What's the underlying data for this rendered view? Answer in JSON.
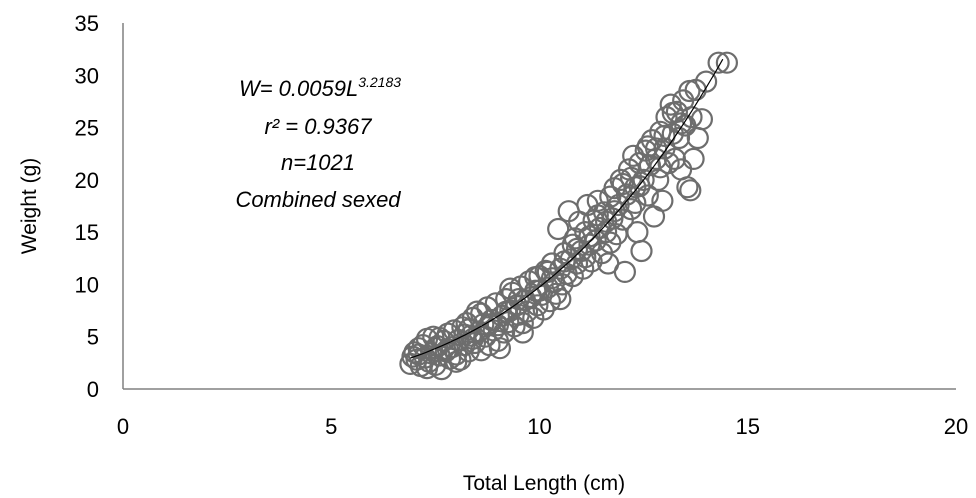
{
  "chart_data": {
    "type": "scatter",
    "title": "",
    "xlabel": "Total Length (cm)",
    "ylabel": "Weight (g)",
    "xlim": [
      0,
      20
    ],
    "ylim": [
      0,
      35
    ],
    "xticks": [
      "0",
      "5",
      "10",
      "15",
      "20"
    ],
    "yticks": [
      "0",
      "5",
      "10",
      "15",
      "20",
      "25",
      "30",
      "35"
    ],
    "grid": false,
    "legend": "none",
    "marker": "open-circle",
    "marker_color": "#6d6d6d",
    "curve_color": "#000000",
    "fit": {
      "a": 0.0059,
      "b": 3.2183,
      "x_range": [
        6.9,
        14.4
      ]
    },
    "annotation": {
      "equation_base": "W= 0.0059L",
      "equation_exponent": "3.2183",
      "r2": "r² = 0.9367",
      "n": "n=1021",
      "group": "Combined sexed"
    },
    "series": [
      {
        "points": [
          [
            6.9,
            2.4
          ],
          [
            6.95,
            3.1
          ],
          [
            7.0,
            3.5
          ],
          [
            7.05,
            2.8
          ],
          [
            7.1,
            3.9
          ],
          [
            7.15,
            2.2
          ],
          [
            7.2,
            4.2
          ],
          [
            7.25,
            3.0
          ],
          [
            7.3,
            4.8
          ],
          [
            7.35,
            2.6
          ],
          [
            7.4,
            3.4
          ],
          [
            7.45,
            5.0
          ],
          [
            7.5,
            2.3
          ],
          [
            7.55,
            4.1
          ],
          [
            7.6,
            3.2
          ],
          [
            7.65,
            1.9
          ],
          [
            7.7,
            4.6
          ],
          [
            7.75,
            3.6
          ],
          [
            7.8,
            5.3
          ],
          [
            7.85,
            2.9
          ],
          [
            7.9,
            4.0
          ],
          [
            7.95,
            5.6
          ],
          [
            8.0,
            3.3
          ],
          [
            8.05,
            4.7
          ],
          [
            8.1,
            2.8
          ],
          [
            8.15,
            5.9
          ],
          [
            8.2,
            4.2
          ],
          [
            8.25,
            6.3
          ],
          [
            8.3,
            3.6
          ],
          [
            8.35,
            5.1
          ],
          [
            8.4,
            6.8
          ],
          [
            8.45,
            4.4
          ],
          [
            8.5,
            7.4
          ],
          [
            8.55,
            5.5
          ],
          [
            8.6,
            3.7
          ],
          [
            8.65,
            6.2
          ],
          [
            8.7,
            5.0
          ],
          [
            8.75,
            7.8
          ],
          [
            8.8,
            4.2
          ],
          [
            8.85,
            6.6
          ],
          [
            8.9,
            5.6
          ],
          [
            8.95,
            8.2
          ],
          [
            9.0,
            6.1
          ],
          [
            9.05,
            3.9
          ],
          [
            9.1,
            7.0
          ],
          [
            9.15,
            5.4
          ],
          [
            9.2,
            8.6
          ],
          [
            9.25,
            6.4
          ],
          [
            9.3,
            7.5
          ],
          [
            9.35,
            9.2
          ],
          [
            9.4,
            6.0
          ],
          [
            9.45,
            8.0
          ],
          [
            9.5,
            7.1
          ],
          [
            9.55,
            9.8
          ],
          [
            9.6,
            5.4
          ],
          [
            9.65,
            8.5
          ],
          [
            9.7,
            7.4
          ],
          [
            9.75,
            10.3
          ],
          [
            9.8,
            8.8
          ],
          [
            9.85,
            6.8
          ],
          [
            9.9,
            9.4
          ],
          [
            9.95,
            8.0
          ],
          [
            10.0,
            10.8
          ],
          [
            10.05,
            9.0
          ],
          [
            10.1,
            7.6
          ],
          [
            10.15,
            11.3
          ],
          [
            10.2,
            9.7
          ],
          [
            10.25,
            8.4
          ],
          [
            10.3,
            12.0
          ],
          [
            10.35,
            10.2
          ],
          [
            10.4,
            9.1
          ],
          [
            10.45,
            15.3
          ],
          [
            10.5,
            11.5
          ],
          [
            10.55,
            10.0
          ],
          [
            10.6,
            13.0
          ],
          [
            10.65,
            11.0
          ],
          [
            10.7,
            17.0
          ],
          [
            10.75,
            12.4
          ],
          [
            10.8,
            10.8
          ],
          [
            10.85,
            14.4
          ],
          [
            10.9,
            12.0
          ],
          [
            10.95,
            16.0
          ],
          [
            11.0,
            13.2
          ],
          [
            11.05,
            11.5
          ],
          [
            11.1,
            15.0
          ],
          [
            11.15,
            17.6
          ],
          [
            11.2,
            13.8
          ],
          [
            11.25,
            12.2
          ],
          [
            11.3,
            16.1
          ],
          [
            11.35,
            14.2
          ],
          [
            11.4,
            18.0
          ],
          [
            11.45,
            15.4
          ],
          [
            11.5,
            13.0
          ],
          [
            11.55,
            16.9
          ],
          [
            11.6,
            15.0
          ],
          [
            11.65,
            12.0
          ],
          [
            11.7,
            18.4
          ],
          [
            11.75,
            16.3
          ],
          [
            11.8,
            19.2
          ],
          [
            11.85,
            14.8
          ],
          [
            11.9,
            17.6
          ],
          [
            11.95,
            20.0
          ],
          [
            12.0,
            16.2
          ],
          [
            12.05,
            11.2
          ],
          [
            12.1,
            18.6
          ],
          [
            12.15,
            21.0
          ],
          [
            12.2,
            17.2
          ],
          [
            12.25,
            22.3
          ],
          [
            12.3,
            19.3
          ],
          [
            12.35,
            15.0
          ],
          [
            12.4,
            21.6
          ],
          [
            12.45,
            13.2
          ],
          [
            12.5,
            20.0
          ],
          [
            12.55,
            22.8
          ],
          [
            12.6,
            18.5
          ],
          [
            12.65,
            21.4
          ],
          [
            12.7,
            23.8
          ],
          [
            12.75,
            16.5
          ],
          [
            12.8,
            22.0
          ],
          [
            12.85,
            20.0
          ],
          [
            12.9,
            24.6
          ],
          [
            12.95,
            18.0
          ],
          [
            13.0,
            23.0
          ],
          [
            13.05,
            26.0
          ],
          [
            13.1,
            21.6
          ],
          [
            13.15,
            27.2
          ],
          [
            13.2,
            24.4
          ],
          [
            13.25,
            22.0
          ],
          [
            13.3,
            26.5
          ],
          [
            13.35,
            24.0
          ],
          [
            13.4,
            21.0
          ],
          [
            13.45,
            27.6
          ],
          [
            13.5,
            25.2
          ],
          [
            13.55,
            19.3
          ],
          [
            13.6,
            28.5
          ],
          [
            13.65,
            26.0
          ],
          [
            13.7,
            22.0
          ],
          [
            13.75,
            28.6
          ],
          [
            13.8,
            24.0
          ],
          [
            13.9,
            25.8
          ],
          [
            14.0,
            29.4
          ],
          [
            14.3,
            31.2
          ],
          [
            14.5,
            31.2
          ],
          [
            13.62,
            19.0
          ],
          [
            7.3,
            2.0
          ],
          [
            7.6,
            4.9
          ],
          [
            8.0,
            2.6
          ],
          [
            8.3,
            5.7
          ],
          [
            8.6,
            7.2
          ],
          [
            9.0,
            4.6
          ],
          [
            9.3,
            9.6
          ],
          [
            9.6,
            6.3
          ],
          [
            9.9,
            10.7
          ],
          [
            10.2,
            11.2
          ],
          [
            10.5,
            8.6
          ],
          [
            10.8,
            13.8
          ],
          [
            11.1,
            12.6
          ],
          [
            11.4,
            16.6
          ],
          [
            11.7,
            14.0
          ],
          [
            12.0,
            19.6
          ],
          [
            12.3,
            17.8
          ],
          [
            12.6,
            23.2
          ],
          [
            12.9,
            21.2
          ],
          [
            13.2,
            26.4
          ],
          [
            7.8,
            3.8
          ],
          [
            8.4,
            4.8
          ],
          [
            9.2,
            7.4
          ],
          [
            10.0,
            9.4
          ],
          [
            10.6,
            12.2
          ],
          [
            11.2,
            14.6
          ],
          [
            11.8,
            17.0
          ],
          [
            12.4,
            19.4
          ],
          [
            13.0,
            24.2
          ],
          [
            13.4,
            25.4
          ],
          [
            8.8,
            6.2
          ],
          [
            9.5,
            8.6
          ],
          [
            10.3,
            10.6
          ],
          [
            10.9,
            13.4
          ],
          [
            11.6,
            16.0
          ],
          [
            12.2,
            20.2
          ],
          [
            12.8,
            23.0
          ],
          [
            7.1,
            3.3
          ],
          [
            7.5,
            3.9
          ],
          [
            8.2,
            5.2
          ]
        ]
      }
    ]
  }
}
